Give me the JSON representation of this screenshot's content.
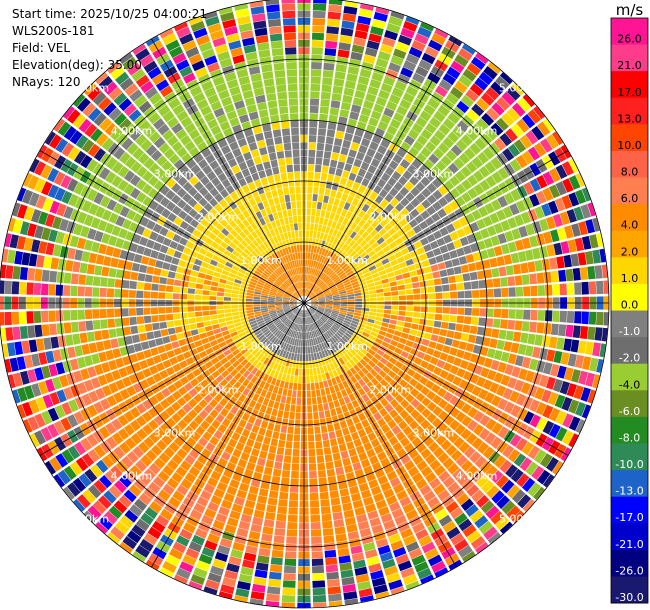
{
  "info": {
    "start_time": "Start time: 2025/10/25 04:00:21",
    "instrument": "WLS200s-181",
    "field": "Field: VEL",
    "elevation": "Elevation(deg): 35.00",
    "nrays": "NRays: 120"
  },
  "colorbar": {
    "unit": "m/s",
    "labels": [
      "26.0",
      "21.0",
      "17.0",
      "13.0",
      "10.0",
      "8.0",
      "6.0",
      "4.0",
      "2.0",
      "1.0",
      "0.0",
      "-1.0",
      "-2.0",
      "-4.0",
      "-6.0",
      "-8.0",
      "-10.0",
      "-13.0",
      "-17.0",
      "-21.0",
      "-26.0",
      "-30.0"
    ],
    "colors": [
      "#ff1493",
      "#ff3c8c",
      "#ff0000",
      "#ff2020",
      "#ff4500",
      "#ff6347",
      "#ff7f50",
      "#ff8c00",
      "#ffa500",
      "#ffd700",
      "#ffff00",
      "#808080",
      "#6e6e6e",
      "#9acd32",
      "#6b8e23",
      "#228b22",
      "#2e8b57",
      "#1e64c8",
      "#0000ff",
      "#0000cd",
      "#000080",
      "#191970"
    ]
  },
  "chart_data": {
    "type": "heatmap",
    "subtype": "polar-ppi",
    "n_rays": 120,
    "max_range_km": 5.0,
    "ring_ranges_km": [
      1.0,
      2.0,
      3.0,
      4.0,
      5.0
    ],
    "ring_labels": [
      "1.00km",
      "2.00km",
      "3.00km",
      "4.00km",
      "5.00km"
    ],
    "radial_lines_deg": [
      0,
      30,
      60,
      90,
      120,
      150,
      180,
      210,
      240,
      270,
      300,
      330
    ],
    "velocity_zones": [
      {
        "region": "0-0.9 km north",
        "value_m_s": 3.0
      },
      {
        "region": "0-0.9 km south",
        "value_m_s": -2.0
      },
      {
        "region": "0.9-2.5 km north",
        "value_m_s": 0.0
      },
      {
        "region": "2.0-3.6 km north",
        "value_m_s": -2.0
      },
      {
        "region": "3.0-4.0 km north",
        "value_m_s": -5.0
      },
      {
        "region": "0.9-3.8 km south",
        "value_m_s": 3.0
      },
      {
        "region": ">4.0 km",
        "value_m_s": "noise"
      }
    ]
  }
}
